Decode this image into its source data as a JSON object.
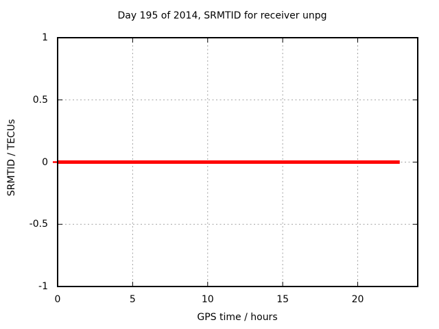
{
  "chart_data": {
    "type": "line",
    "title": "Day 195 of 2014, SRMTID for receiver unpg",
    "xlabel": "GPS time / hours",
    "ylabel": "SRMTID / TECUs",
    "xlim": [
      0,
      24
    ],
    "ylim": [
      -1,
      1
    ],
    "xticks": [
      {
        "value": 0,
        "label": "0"
      },
      {
        "value": 5,
        "label": "5"
      },
      {
        "value": 10,
        "label": "10"
      },
      {
        "value": 15,
        "label": "15"
      },
      {
        "value": 20,
        "label": "20"
      }
    ],
    "yticks": [
      {
        "value": -1,
        "label": "-1"
      },
      {
        "value": -0.5,
        "label": "-0.5"
      },
      {
        "value": 0,
        "label": "0"
      },
      {
        "value": 0.5,
        "label": "0.5"
      },
      {
        "value": 1,
        "label": "1"
      }
    ],
    "grid": true,
    "legend": "none",
    "series": [
      {
        "name": "SRMTID",
        "style": "line",
        "color": "#ff0000",
        "linewidth": 5,
        "x": [
          0,
          22.8
        ],
        "y": [
          0,
          0
        ]
      }
    ],
    "colors": {
      "background": "#ffffff",
      "border": "#000000",
      "grid": "#a0a0a0",
      "text": "#000000"
    }
  }
}
